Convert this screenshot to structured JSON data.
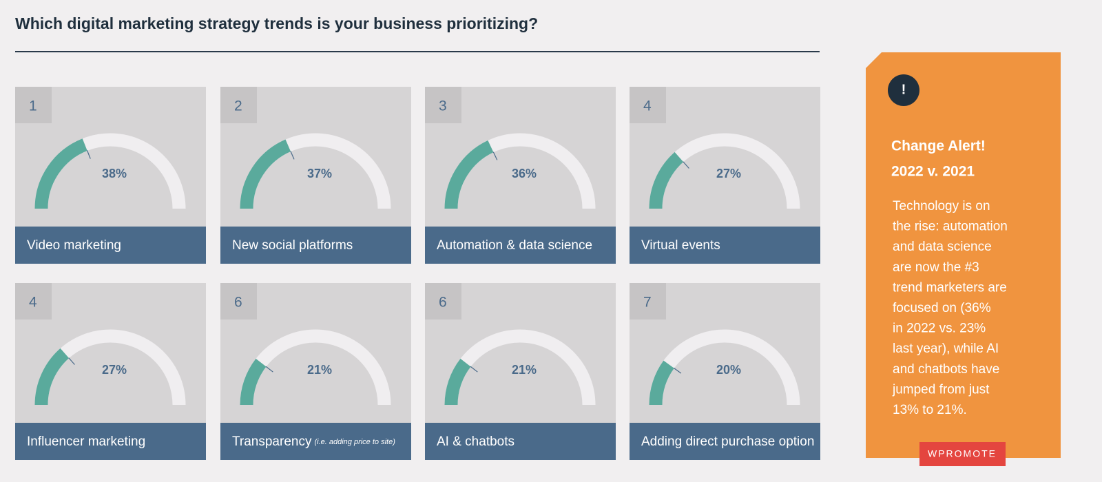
{
  "chart_data": {
    "type": "gauge",
    "title": "Which digital marketing strategy trends is your business prioritizing?",
    "categories": [
      "Video marketing",
      "New social platforms",
      "Automation & data science",
      "Virtual events",
      "Influencer marketing",
      "Transparency",
      "AI & chatbots",
      "Adding direct purchase option"
    ],
    "category_notes": [
      null,
      null,
      null,
      null,
      null,
      "(i.e. adding price to site)",
      null,
      null
    ],
    "ranks": [
      1,
      2,
      3,
      4,
      4,
      6,
      6,
      7
    ],
    "values": [
      38,
      37,
      36,
      27,
      27,
      21,
      21,
      20
    ],
    "value_labels": [
      "38%",
      "37%",
      "36%",
      "27%",
      "27%",
      "21%",
      "21%",
      "20%"
    ],
    "ylim": [
      0,
      100
    ],
    "color": "#5aaa9c"
  },
  "sidebar": {
    "icon": "!",
    "title_lines": [
      "Change Alert!",
      "2022 v. 2021"
    ],
    "body": [
      "Technology is on",
      "the rise: automation",
      "and data science",
      "are now the #3",
      "trend marketers are",
      "focused on (36%",
      "in 2022 vs. 23%",
      "last year), while AI",
      "and chatbots have",
      "jumped from just",
      "13% to 21%."
    ],
    "logo": "WPROMOTE"
  }
}
